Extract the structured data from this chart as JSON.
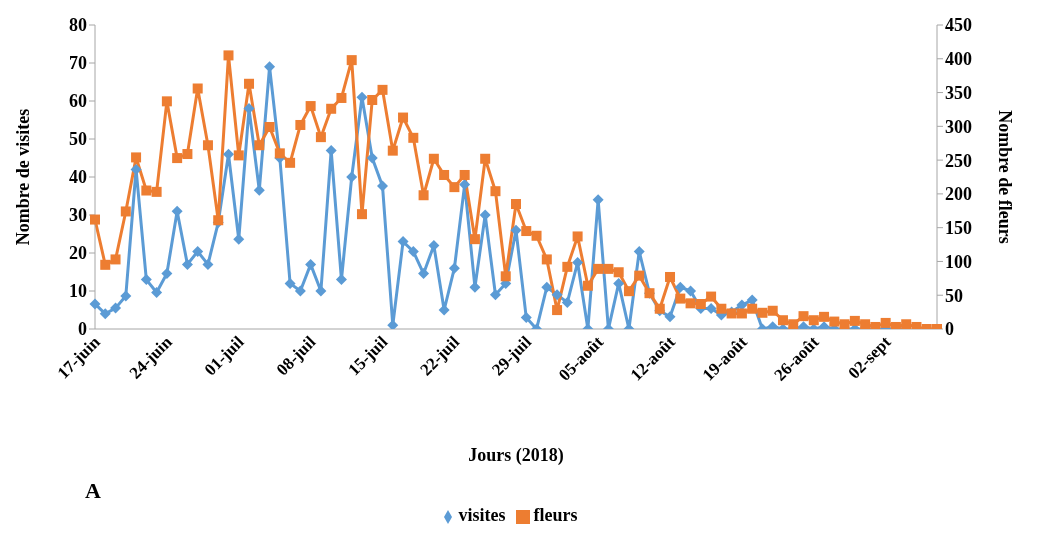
{
  "chart_data": {
    "type": "line",
    "xlabel": "Jours (2018)",
    "ylabel": "Nombre de visites",
    "y2label": "Nombre de fleurs",
    "annotations": [
      "A"
    ],
    "categories": [
      "17-juin",
      null,
      null,
      null,
      null,
      null,
      null,
      "24-juin",
      null,
      null,
      null,
      null,
      null,
      null,
      "01-juil",
      null,
      null,
      null,
      null,
      null,
      null,
      "08-juil",
      null,
      null,
      null,
      null,
      null,
      null,
      "15-juil",
      null,
      null,
      null,
      null,
      null,
      null,
      "22-juil",
      null,
      null,
      null,
      null,
      null,
      null,
      "29-juil",
      null,
      null,
      null,
      null,
      null,
      null,
      "05-août",
      null,
      null,
      null,
      null,
      null,
      null,
      "12-août",
      null,
      null,
      null,
      null,
      null,
      null,
      "19-août",
      null,
      null,
      null,
      null,
      null,
      null,
      "26-août",
      null,
      null,
      null,
      null,
      null,
      null,
      "02-sept",
      null,
      null,
      null,
      null,
      null
    ],
    "series": [
      {
        "name": "visites",
        "color": "#5b9bd5",
        "marker": "diamond",
        "values": [
          6.6,
          4,
          5.5,
          8.7,
          42,
          13,
          9.6,
          14.6,
          31,
          17,
          20.4,
          17,
          28,
          46,
          23.6,
          58,
          36.5,
          69,
          45,
          12,
          10,
          17,
          10,
          47,
          13,
          40,
          61,
          45,
          37.6,
          1,
          23,
          20.4,
          14.6,
          22,
          5,
          16,
          38,
          11,
          30,
          9,
          12,
          26,
          3,
          0,
          11,
          9,
          7,
          17.5,
          0,
          34,
          0,
          12,
          0,
          20.4,
          9.4,
          4.8,
          3.2,
          11,
          10,
          5.4,
          5.4,
          3.7,
          4.5,
          6.3,
          7.6,
          0,
          0.6,
          0,
          0,
          0.6,
          0,
          0.6,
          0,
          0,
          0,
          0,
          0,
          0,
          0,
          0,
          null,
          null,
          null
        ]
      },
      {
        "name": "fleurs",
        "color": "#ed7d31",
        "marker": "square",
        "axis": "y2",
        "values": [
          162,
          95,
          103,
          174,
          254,
          205,
          203,
          337,
          253,
          259,
          356,
          272,
          161,
          405,
          257,
          363,
          272,
          299,
          260,
          246,
          302,
          330,
          284,
          326,
          342,
          398,
          170,
          339,
          354,
          264,
          313,
          283,
          198,
          252,
          228,
          210,
          228,
          133,
          252,
          204,
          78,
          185,
          145,
          138,
          103,
          28,
          92,
          137,
          64,
          89,
          89,
          84,
          56,
          79,
          53,
          30,
          77,
          45,
          38,
          37,
          48,
          30,
          23,
          23,
          30,
          24,
          27,
          13,
          7,
          19,
          13,
          18,
          11,
          7,
          12,
          7,
          3,
          9,
          3,
          7,
          3,
          0,
          0
        ]
      }
    ],
    "ylim": [
      0,
      80
    ],
    "yticks": [
      0,
      10,
      20,
      30,
      40,
      50,
      60,
      70,
      80
    ],
    "y2lim": [
      0,
      450
    ],
    "y2ticks": [
      0,
      50,
      100,
      150,
      200,
      250,
      300,
      350,
      400,
      450
    ],
    "grid": false,
    "legend": "bottom",
    "line_style": "solid"
  }
}
